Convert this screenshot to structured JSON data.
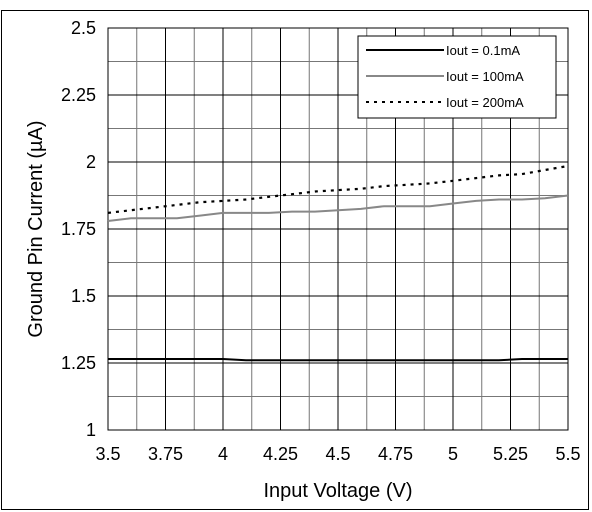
{
  "chart_data": {
    "type": "line",
    "title": "",
    "xlabel": "Input Voltage (V)",
    "ylabel": "Ground Pin Current (µA)",
    "xlim": [
      3.5,
      5.5
    ],
    "ylim": [
      1,
      2.5
    ],
    "x_ticks": [
      "3.5",
      "3.75",
      "4",
      "4.25",
      "4.5",
      "4.75",
      "5",
      "5.25",
      "5.5"
    ],
    "y_ticks": [
      "1",
      "1.25",
      "1.5",
      "1.75",
      "2",
      "2.25",
      "2.5"
    ],
    "x_tick_values": [
      3.5,
      3.75,
      4,
      4.25,
      4.5,
      4.75,
      5,
      5.25,
      5.5
    ],
    "y_tick_values": [
      1,
      1.25,
      1.5,
      1.75,
      2,
      2.25,
      2.5
    ],
    "grid_x_values": [
      3.5,
      3.625,
      3.75,
      3.875,
      4,
      4.125,
      4.25,
      4.375,
      4.5,
      4.625,
      4.75,
      4.875,
      5,
      5.125,
      5.25,
      5.375,
      5.5
    ],
    "grid_y_values": [
      1,
      1.125,
      1.25,
      1.375,
      1.5,
      1.625,
      1.75,
      1.875,
      2,
      2.125,
      2.25,
      2.375,
      2.5
    ],
    "grid": true,
    "legend_position": "top-right",
    "series": [
      {
        "name": "Iout = 0.1mA",
        "color": "#000000",
        "style": "solid",
        "x": [
          3.5,
          3.6,
          3.7,
          3.8,
          3.9,
          4.0,
          4.1,
          4.2,
          4.3,
          4.4,
          4.5,
          4.6,
          4.7,
          4.8,
          4.9,
          5.0,
          5.1,
          5.2,
          5.3,
          5.4,
          5.5
        ],
        "y": [
          1.265,
          1.265,
          1.265,
          1.265,
          1.265,
          1.265,
          1.26,
          1.26,
          1.26,
          1.26,
          1.26,
          1.26,
          1.26,
          1.26,
          1.26,
          1.26,
          1.26,
          1.26,
          1.265,
          1.265,
          1.265
        ]
      },
      {
        "name": "Iout = 100mA",
        "color": "#888888",
        "style": "solid",
        "x": [
          3.5,
          3.6,
          3.7,
          3.8,
          3.9,
          4.0,
          4.1,
          4.2,
          4.3,
          4.4,
          4.5,
          4.6,
          4.7,
          4.8,
          4.9,
          5.0,
          5.1,
          5.2,
          5.3,
          5.4,
          5.5
        ],
        "y": [
          1.78,
          1.79,
          1.79,
          1.79,
          1.8,
          1.81,
          1.81,
          1.81,
          1.815,
          1.815,
          1.82,
          1.825,
          1.835,
          1.835,
          1.835,
          1.845,
          1.855,
          1.86,
          1.86,
          1.865,
          1.875
        ]
      },
      {
        "name": "Iout = 200mA",
        "color": "#000000",
        "style": "dotted",
        "x": [
          3.5,
          3.6,
          3.7,
          3.8,
          3.9,
          4.0,
          4.1,
          4.2,
          4.3,
          4.4,
          4.5,
          4.6,
          4.7,
          4.8,
          4.9,
          5.0,
          5.1,
          5.2,
          5.3,
          5.4,
          5.5
        ],
        "y": [
          1.81,
          1.82,
          1.83,
          1.84,
          1.85,
          1.855,
          1.86,
          1.87,
          1.88,
          1.89,
          1.895,
          1.9,
          1.91,
          1.915,
          1.92,
          1.93,
          1.94,
          1.95,
          1.955,
          1.97,
          1.985
        ]
      }
    ]
  }
}
